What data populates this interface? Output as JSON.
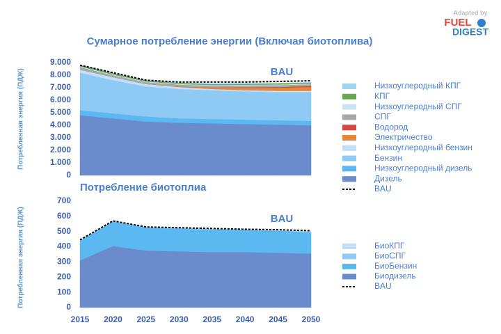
{
  "logo": {
    "adapted": "Adapted by",
    "brand": "FUEL",
    "brand2": "DIGEST"
  },
  "chart_data": [
    {
      "type": "stacked_area",
      "title": "Сумарное потребление энергии (Включая биотоплива)",
      "y_label": "Потребленная энергия (ПДЖ)",
      "annotation": "BAU",
      "x": [
        2015,
        2020,
        2025,
        2030,
        2035,
        2040,
        2045,
        2050
      ],
      "xlim": [
        2015,
        2050
      ],
      "ylim": [
        0,
        9000
      ],
      "yticks": [
        0,
        {
          "value": 1000,
          "label": "1.000"
        },
        {
          "value": 2000,
          "label": "2.000"
        },
        {
          "value": 3000,
          "label": "3.000"
        },
        {
          "value": 4000,
          "label": "4.000"
        },
        {
          "value": 5000,
          "label": "5.000"
        },
        {
          "value": 6000,
          "label": "6.000"
        },
        {
          "value": 7000,
          "label": "7.000"
        },
        {
          "value": 8000,
          "label": "8.000"
        },
        {
          "value": 9000,
          "label": "9.000"
        }
      ],
      "series": [
        {
          "name": "Дизель",
          "color": "#6a8ccc",
          "values": [
            4800,
            4550,
            4300,
            4200,
            4150,
            4100,
            4050,
            4000
          ]
        },
        {
          "name": "Низкоуглеродный дизель",
          "color": "#5bb8f0",
          "values": [
            400,
            400,
            400,
            350,
            350,
            350,
            350,
            350
          ]
        },
        {
          "name": "Бензин",
          "color": "#8ecaf4",
          "values": [
            3000,
            2650,
            2400,
            2350,
            2300,
            2250,
            2250,
            2300
          ]
        },
        {
          "name": "Низкоуглеродный бензин",
          "color": "#bfe0f8",
          "values": [
            250,
            250,
            200,
            150,
            100,
            100,
            100,
            100
          ]
        },
        {
          "name": "Электричество",
          "color": "#e8873a",
          "values": [
            0,
            0,
            0,
            50,
            100,
            200,
            250,
            300
          ]
        },
        {
          "name": "Водород",
          "color": "#d9473d",
          "values": [
            0,
            0,
            0,
            0,
            20,
            40,
            60,
            80
          ]
        },
        {
          "name": "СПГ",
          "color": "#a8a8a8",
          "values": [
            200,
            150,
            150,
            150,
            150,
            150,
            150,
            150
          ]
        },
        {
          "name": "Низкоуглеродный СПГ",
          "color": "#c7e3f5",
          "values": [
            50,
            50,
            50,
            50,
            50,
            50,
            50,
            50
          ]
        },
        {
          "name": "КПГ",
          "color": "#6aa84f",
          "values": [
            100,
            100,
            80,
            80,
            80,
            80,
            80,
            80
          ]
        },
        {
          "name": "Низкоуглеродный КПГ",
          "color": "#9fd3f0",
          "values": [
            20,
            20,
            20,
            20,
            20,
            20,
            20,
            20
          ]
        }
      ],
      "line": {
        "name": "BAU",
        "color": "#000000",
        "dashed": true,
        "values": [
          8800,
          8200,
          7600,
          7450,
          7450,
          7450,
          7500,
          7550
        ]
      }
    },
    {
      "type": "stacked_area",
      "title": "Потребление биотоплиа",
      "y_label": "Потребленная энергия (ПДЖ)",
      "annotation": "BAU",
      "x": [
        2015,
        2020,
        2025,
        2030,
        2035,
        2040,
        2045,
        2050
      ],
      "xlim": [
        2015,
        2050
      ],
      "xticks": [
        2015,
        2020,
        2025,
        2030,
        2035,
        2040,
        2045,
        2050
      ],
      "ylim": [
        0,
        700
      ],
      "yticks": [
        0,
        100,
        200,
        300,
        400,
        500,
        600,
        700
      ],
      "series": [
        {
          "name": "Биодизель",
          "color": "#6a8ccc",
          "values": [
            310,
            405,
            375,
            370,
            365,
            365,
            360,
            355
          ]
        },
        {
          "name": "БиоБензин",
          "color": "#5bb8f0",
          "values": [
            130,
            160,
            150,
            150,
            148,
            145,
            145,
            140
          ]
        },
        {
          "name": "БиоСПГ",
          "color": "#8ecaf4",
          "values": [
            2,
            3,
            3,
            3,
            3,
            3,
            3,
            3
          ]
        },
        {
          "name": "БиоКПГ",
          "color": "#bfe0f8",
          "values": [
            1,
            1,
            1,
            1,
            1,
            1,
            1,
            1
          ]
        }
      ],
      "line": {
        "name": "BAU",
        "color": "#000000",
        "dashed": true,
        "values": [
          445,
          570,
          530,
          525,
          520,
          515,
          512,
          505
        ]
      }
    }
  ]
}
